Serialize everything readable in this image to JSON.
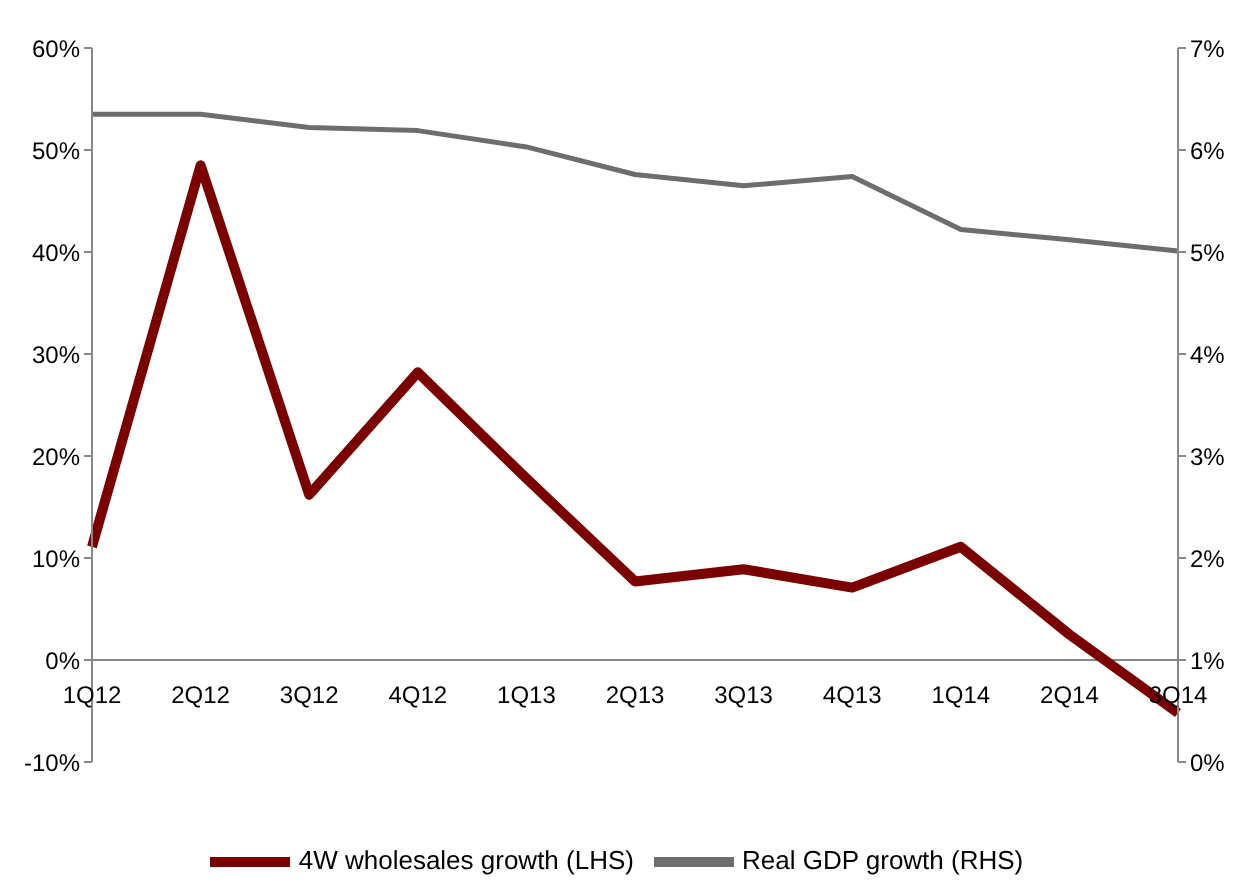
{
  "chart_data": {
    "type": "line",
    "categories": [
      "1Q12",
      "2Q12",
      "3Q12",
      "4Q12",
      "1Q13",
      "2Q13",
      "3Q13",
      "4Q13",
      "1Q14",
      "2Q14",
      "3Q14"
    ],
    "series": [
      {
        "name": "4W wholesales growth (LHS)",
        "color": "#7b0000",
        "values": [
          11.1,
          48.5,
          16.2,
          28.2,
          17.8,
          7.7,
          8.9,
          7.1,
          11.1,
          2.5,
          -5.2
        ]
      },
      {
        "name": "Real GDP growth (RHS)",
        "color": "#6d6d6d",
        "axis": "y2",
        "values": [
          6.35,
          6.35,
          6.22,
          6.19,
          6.03,
          5.76,
          5.65,
          5.74,
          5.22,
          5.12,
          5.01
        ]
      }
    ],
    "ylim": [
      -10,
      60
    ],
    "yticks": [
      {
        "value": -10,
        "label": "-10%"
      },
      {
        "value": 0,
        "label": "0%"
      },
      {
        "value": 10,
        "label": "10%"
      },
      {
        "value": 20,
        "label": "20%"
      },
      {
        "value": 30,
        "label": "30%"
      },
      {
        "value": 40,
        "label": "40%"
      },
      {
        "value": 50,
        "label": "50%"
      },
      {
        "value": 60,
        "label": "60%"
      }
    ],
    "y2lim": [
      0,
      7
    ],
    "y2ticks": [
      {
        "value": 0,
        "label": "0%"
      },
      {
        "value": 1,
        "label": "1%"
      },
      {
        "value": 2,
        "label": "2%"
      },
      {
        "value": 3,
        "label": "3%"
      },
      {
        "value": 4,
        "label": "4%"
      },
      {
        "value": 5,
        "label": "5%"
      },
      {
        "value": 6,
        "label": "6%"
      },
      {
        "value": 7,
        "label": "7%"
      }
    ],
    "legend": "bottom",
    "grid": false,
    "marker": "none"
  }
}
